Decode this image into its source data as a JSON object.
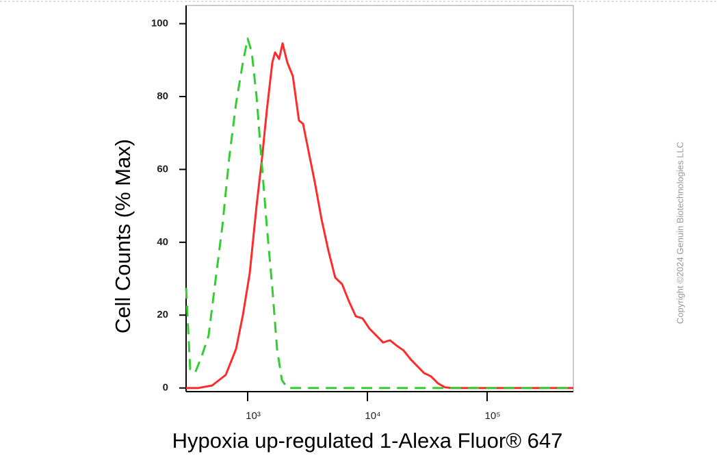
{
  "chart_data": {
    "type": "line",
    "x_label": "Hypoxia up-regulated 1-Alexa Fluor® 647",
    "y_label": "Cell Counts (% Max)",
    "xscale": "log",
    "xlim": [
      306,
      525000
    ],
    "ylim": [
      -1,
      105
    ],
    "xticks": [
      {
        "value": 1000,
        "label": "10³"
      },
      {
        "value": 10000,
        "label": "10⁴"
      },
      {
        "value": 100000,
        "label": "10⁵"
      }
    ],
    "yticks": [
      0,
      20,
      40,
      60,
      80,
      100
    ],
    "series": [
      {
        "color": "#ff2a2a",
        "dashed": false,
        "x": [
          306,
          388,
          505,
          656,
          800,
          912,
          1040,
          1186,
          1318,
          1445,
          1606,
          1693,
          1832,
          1956,
          2145,
          2383,
          2683,
          2904,
          3184,
          3631,
          4140,
          4721,
          5386,
          6145,
          7010,
          7998,
          9120,
          10400,
          11860,
          13520,
          15450,
          17620,
          20090,
          22910,
          26120,
          29790,
          33960,
          38810,
          44260,
          50470,
          65610,
          85310,
          525000
        ],
        "values": [
          0,
          0,
          0.7,
          3.6,
          10.7,
          20,
          31.5,
          50,
          63.1,
          76.2,
          89.3,
          92.1,
          90.3,
          94.6,
          89.3,
          85.6,
          73.4,
          72.5,
          65.9,
          56.6,
          46.3,
          37.8,
          30.3,
          28.5,
          23.8,
          19.7,
          19.1,
          16.3,
          14.4,
          12.5,
          13.1,
          11.6,
          10.3,
          7.9,
          6,
          4.1,
          3.2,
          1.3,
          0.2,
          0,
          0,
          0,
          0
        ]
      },
      {
        "color": "#33cc33",
        "dashed": true,
        "x": [
          306,
          331,
          363,
          414,
          472,
          538,
          615,
          701,
          800,
          912,
          1000,
          1082,
          1186,
          1301,
          1445,
          1606,
          1762,
          1931,
          2145,
          2448,
          525000
        ],
        "values": [
          27.5,
          5.1,
          4.1,
          8.8,
          14.4,
          29.4,
          44.4,
          63.1,
          78.1,
          89.3,
          95.9,
          92.1,
          80,
          63.1,
          44.4,
          27.5,
          10.7,
          2.2,
          0,
          0,
          0
        ]
      }
    ]
  },
  "watermark": "Copyright ©2024 Genuin Biotechnologies LLC"
}
